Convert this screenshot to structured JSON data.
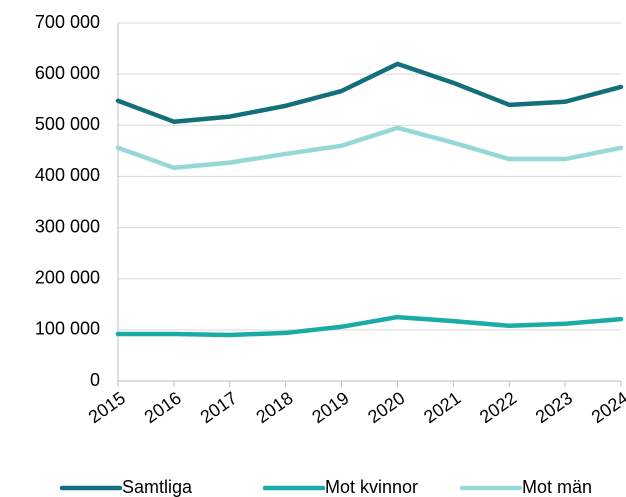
{
  "chart_data": {
    "type": "line",
    "categories": [
      "2015",
      "2016",
      "2017",
      "2018",
      "2019",
      "2020",
      "2021",
      "2022",
      "2023",
      "2024"
    ],
    "series": [
      {
        "name": "Samtliga",
        "color": "#13707a",
        "values": [
          548000,
          507000,
          517000,
          538000,
          567000,
          620000,
          583000,
          540000,
          546000,
          575000
        ]
      },
      {
        "name": "Mot kvinnor",
        "color": "#1aaba5",
        "values": [
          92000,
          92000,
          90000,
          94000,
          106000,
          125000,
          117000,
          108000,
          112000,
          121000
        ]
      },
      {
        "name": "Mot män",
        "color": "#96d8d8",
        "values": [
          456000,
          417000,
          427000,
          444000,
          460000,
          495000,
          466000,
          434000,
          434000,
          456000
        ]
      }
    ],
    "ylim": [
      0,
      700000
    ],
    "yticks": [
      0,
      {
        "value": 100000,
        "label": "100 000"
      },
      {
        "value": 200000,
        "label": "200 000"
      },
      {
        "value": 300000,
        "label": "300 000"
      },
      {
        "value": 400000,
        "label": "400 000"
      },
      {
        "value": 500000,
        "label": "500 000"
      },
      {
        "value": 600000,
        "label": "600 000"
      },
      {
        "value": 700000,
        "label": "700 000"
      }
    ],
    "grid": true,
    "legend": "bottom"
  }
}
